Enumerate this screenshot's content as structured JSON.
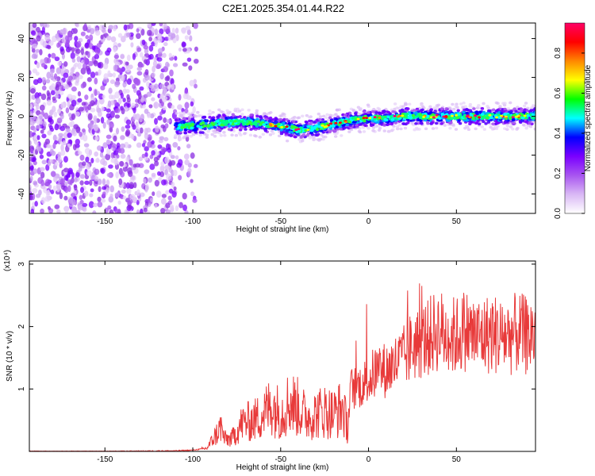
{
  "title": "C2E1.2025.354.01.44.R22",
  "chart_data": [
    {
      "type": "heatmap",
      "xlabel": "Height of straight line (km)",
      "ylabel": "Frequency (Hz)",
      "xlim": [
        -193,
        95
      ],
      "ylim": [
        -50,
        48
      ],
      "xticks": [
        -150,
        -100,
        -50,
        0,
        50
      ],
      "yticks": [
        -40,
        -20,
        0,
        20,
        40
      ],
      "noise_region_x": [
        -193,
        -110
      ],
      "band": {
        "x": [
          -110,
          -100,
          -90,
          -80,
          -70,
          -60,
          -50,
          -40,
          -30,
          -20,
          -10,
          0,
          10,
          20,
          30,
          40,
          50,
          60,
          70,
          80,
          90,
          95
        ],
        "center_freq": [
          -5,
          -5,
          -4,
          -3,
          -3,
          -4,
          -5,
          -7,
          -6,
          -4,
          -2,
          -1,
          -1,
          0,
          0,
          0,
          0,
          0,
          0,
          0,
          0,
          0
        ]
      },
      "colorbar": {
        "label": "Normalized spectral amplitude",
        "range": [
          0,
          0.95
        ],
        "ticks": [
          "0.0",
          "0.2",
          "0.4",
          "0.6",
          "0.8"
        ],
        "colormap": [
          "#ffffff",
          "#d9b8f5",
          "#a855f0",
          "#7a00ff",
          "#0000ff",
          "#00ffff",
          "#00ff00",
          "#ffff00",
          "#ff8800",
          "#ff0000",
          "#ff0066"
        ]
      }
    },
    {
      "type": "line",
      "xlabel": "Height of straight line (km)",
      "ylabel": "SNR (10 * v/v)",
      "yscale_label": "(x10⁴)",
      "xlim": [
        -193,
        95
      ],
      "ylim": [
        0,
        3.05
      ],
      "xticks": [
        -150,
        -100,
        -50,
        0,
        50
      ],
      "yticks": [
        1,
        2,
        3
      ],
      "color": "#e83a3a",
      "series": [
        {
          "x": [
            -193,
            -150,
            -110,
            -100,
            -92,
            -86,
            -84,
            -82,
            -78,
            -72,
            -65,
            -60,
            -55,
            -50,
            -45,
            -40,
            -35,
            -30,
            -25,
            -20,
            -15,
            -12,
            -10,
            -5,
            0,
            5,
            10,
            15,
            20,
            25,
            30,
            35,
            40,
            45,
            50,
            55,
            60,
            65,
            70,
            75,
            80,
            85,
            90,
            95
          ],
          "y": [
            0.0,
            0.0,
            0.01,
            0.02,
            0.05,
            0.3,
            0.4,
            0.2,
            0.2,
            0.45,
            0.5,
            0.6,
            0.75,
            0.6,
            0.8,
            0.7,
            0.55,
            0.6,
            0.65,
            0.6,
            0.7,
            0.4,
            1.0,
            1.05,
            1.15,
            1.3,
            1.3,
            1.4,
            1.5,
            1.7,
            1.75,
            1.85,
            1.95,
            1.85,
            1.85,
            1.95,
            1.85,
            1.85,
            1.9,
            1.85,
            1.85,
            1.9,
            1.85,
            1.9
          ]
        }
      ]
    }
  ]
}
